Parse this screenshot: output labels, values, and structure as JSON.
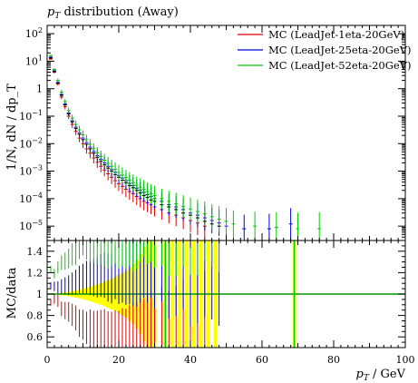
{
  "chart_data": {
    "type": "scatter",
    "title": "p_T distribution (Away)",
    "title_parts": {
      "symbol": "p",
      "sub": "T",
      "text": " distribution (Away)"
    },
    "xlabel": "p_T / GeV",
    "xlabel_parts": {
      "symbol": "p",
      "sub": "T",
      "text": " / GeV"
    },
    "xlim": [
      0,
      100
    ],
    "xticks": [
      0,
      20,
      40,
      60,
      80,
      100
    ],
    "xtick_labels": [
      "0",
      "20",
      "40",
      "60",
      "80",
      "100"
    ],
    "legend_position": "top-right",
    "main_panel": {
      "ylabel": "1/N, dN / dp_T",
      "yscale": "log",
      "ylim": [
        3e-06,
        200
      ],
      "yticks": [
        1e-05,
        0.0001,
        0.001,
        0.01,
        0.1,
        1,
        10,
        100
      ],
      "ytick_labels": [
        {
          "base": "10",
          "exp": "−5"
        },
        {
          "base": "10",
          "exp": "−4"
        },
        {
          "base": "10",
          "exp": "−3"
        },
        {
          "base": "10",
          "exp": "−2"
        },
        {
          "base": "10",
          "exp": "−1"
        },
        {
          "base": "1",
          "exp": ""
        },
        {
          "base": "10",
          "exp": "1"
        },
        {
          "base": "10",
          "exp": "2"
        }
      ]
    },
    "ratio_panel": {
      "ylabel": "MC/data",
      "ylim": [
        0.5,
        1.5
      ],
      "yticks": [
        0.6,
        0.8,
        1,
        1.2,
        1.4
      ],
      "ytick_labels": [
        "0.6",
        "0.8",
        "1",
        "1.2",
        "1.4"
      ],
      "reference_line": 1
    },
    "series": [
      {
        "name": "MC (LeadJet-1eta-20GeV)",
        "color": "#dd0000",
        "points": [
          [
            1,
            12
          ],
          [
            2,
            4
          ],
          [
            3,
            1.5
          ],
          [
            4,
            0.5
          ],
          [
            5,
            0.22
          ],
          [
            6,
            0.1
          ],
          [
            7,
            0.05
          ],
          [
            8,
            0.028
          ],
          [
            9,
            0.016
          ],
          [
            10,
            0.01
          ],
          [
            11,
            0.0065
          ],
          [
            12,
            0.0045
          ],
          [
            13,
            0.003
          ],
          [
            14,
            0.0021
          ],
          [
            15,
            0.0015
          ],
          [
            16,
            0.0011
          ],
          [
            17,
            0.0008
          ],
          [
            18,
            0.0006
          ],
          [
            19,
            0.00045
          ],
          [
            20,
            0.00035
          ],
          [
            21,
            0.00028
          ],
          [
            22,
            0.00022
          ],
          [
            23,
            0.00018
          ],
          [
            24,
            0.00015
          ],
          [
            25,
            0.00012
          ],
          [
            26,
            0.0001
          ],
          [
            27,
            8e-05
          ],
          [
            28,
            7e-05
          ],
          [
            29,
            6e-05
          ],
          [
            30,
            5e-05
          ],
          [
            32,
            4e-05
          ],
          [
            34,
            3e-05
          ],
          [
            36,
            2.5e-05
          ],
          [
            38,
            2e-05
          ],
          [
            40,
            1.6e-05
          ],
          [
            42,
            1.3e-05
          ],
          [
            44,
            1e-05
          ]
        ]
      },
      {
        "name": "MC (LeadJet-25eta-20GeV)",
        "color": "#0000dd",
        "points": [
          [
            1,
            14
          ],
          [
            2,
            4.5
          ],
          [
            3,
            1.7
          ],
          [
            4,
            0.62
          ],
          [
            5,
            0.28
          ],
          [
            6,
            0.13
          ],
          [
            7,
            0.068
          ],
          [
            8,
            0.04
          ],
          [
            9,
            0.025
          ],
          [
            10,
            0.016
          ],
          [
            11,
            0.011
          ],
          [
            12,
            0.0075
          ],
          [
            13,
            0.0052
          ],
          [
            14,
            0.0037
          ],
          [
            15,
            0.0027
          ],
          [
            16,
            0.002
          ],
          [
            17,
            0.0015
          ],
          [
            18,
            0.00115
          ],
          [
            19,
            0.0009
          ],
          [
            20,
            0.0007
          ],
          [
            21,
            0.00056
          ],
          [
            22,
            0.00045
          ],
          [
            23,
            0.00036
          ],
          [
            24,
            0.0003
          ],
          [
            25,
            0.00024
          ],
          [
            26,
            0.0002
          ],
          [
            27,
            0.00017
          ],
          [
            28,
            0.00014
          ],
          [
            29,
            0.00012
          ],
          [
            30,
            0.0001
          ],
          [
            32,
            8e-05
          ],
          [
            34,
            6e-05
          ],
          [
            36,
            5e-05
          ],
          [
            38,
            4e-05
          ],
          [
            40,
            3e-05
          ],
          [
            42,
            2.5e-05
          ],
          [
            44,
            2e-05
          ],
          [
            46,
            1.6e-05
          ],
          [
            48,
            1.3e-05
          ],
          [
            50,
            1e-05
          ],
          [
            55,
            8e-06
          ],
          [
            62,
            8e-06
          ],
          [
            68,
            1.2e-05
          ]
        ]
      },
      {
        "name": "MC (LeadJet-52eta-20GeV)",
        "color": "#00cc00",
        "points": [
          [
            1,
            16
          ],
          [
            2,
            5
          ],
          [
            3,
            2
          ],
          [
            4,
            0.75
          ],
          [
            5,
            0.34
          ],
          [
            6,
            0.16
          ],
          [
            7,
            0.085
          ],
          [
            8,
            0.05
          ],
          [
            9,
            0.032
          ],
          [
            10,
            0.021
          ],
          [
            11,
            0.014
          ],
          [
            12,
            0.0095
          ],
          [
            13,
            0.0066
          ],
          [
            14,
            0.0047
          ],
          [
            15,
            0.0034
          ],
          [
            16,
            0.0025
          ],
          [
            17,
            0.0019
          ],
          [
            18,
            0.0015
          ],
          [
            19,
            0.00115
          ],
          [
            20,
            0.0009
          ],
          [
            21,
            0.00072
          ],
          [
            22,
            0.00058
          ],
          [
            23,
            0.00047
          ],
          [
            24,
            0.00038
          ],
          [
            25,
            0.00031
          ],
          [
            26,
            0.00026
          ],
          [
            27,
            0.00022
          ],
          [
            28,
            0.00018
          ],
          [
            29,
            0.00015
          ],
          [
            30,
            0.00013
          ],
          [
            32,
            0.0001
          ],
          [
            34,
            8e-05
          ],
          [
            36,
            6.5e-05
          ],
          [
            38,
            5.2e-05
          ],
          [
            40,
            4.2e-05
          ],
          [
            42,
            3.4e-05
          ],
          [
            44,
            2.8e-05
          ],
          [
            46,
            2.2e-05
          ],
          [
            48,
            1.8e-05
          ],
          [
            50,
            1.5e-05
          ],
          [
            52,
            1.2e-05
          ],
          [
            58,
            1e-05
          ],
          [
            64,
            9e-06
          ],
          [
            70,
            8e-06
          ],
          [
            76,
            8e-06
          ]
        ]
      }
    ],
    "data_points": [
      [
        1,
        13
      ],
      [
        2,
        4.2
      ],
      [
        3,
        1.6
      ],
      [
        4,
        0.58
      ],
      [
        5,
        0.26
      ],
      [
        6,
        0.12
      ],
      [
        7,
        0.062
      ],
      [
        8,
        0.036
      ],
      [
        9,
        0.022
      ],
      [
        10,
        0.014
      ],
      [
        11,
        0.0095
      ],
      [
        12,
        0.0065
      ],
      [
        13,
        0.0045
      ],
      [
        14,
        0.0032
      ],
      [
        15,
        0.0023
      ],
      [
        16,
        0.0017
      ],
      [
        17,
        0.0013
      ],
      [
        18,
        0.001
      ],
      [
        19,
        0.00075
      ],
      [
        20,
        0.0006
      ],
      [
        21,
        0.00047
      ],
      [
        22,
        0.00038
      ],
      [
        23,
        0.0003
      ],
      [
        24,
        0.00025
      ],
      [
        25,
        0.0002
      ],
      [
        26,
        0.00016
      ],
      [
        27,
        0.00013
      ],
      [
        28,
        0.00011
      ],
      [
        29,
        9e-05
      ],
      [
        30,
        8e-05
      ],
      [
        32,
        6e-05
      ],
      [
        34,
        5e-05
      ],
      [
        36,
        4e-05
      ],
      [
        38,
        3e-05
      ],
      [
        40,
        2.5e-05
      ],
      [
        42,
        2e-05
      ],
      [
        44,
        1.5e-05
      ],
      [
        46,
        1.2e-05
      ],
      [
        48,
        1e-05
      ]
    ],
    "ratio_band_halfwidth": [
      [
        1,
        0.002
      ],
      [
        2,
        0.004
      ],
      [
        3,
        0.006
      ],
      [
        4,
        0.01
      ],
      [
        5,
        0.014
      ],
      [
        6,
        0.02
      ],
      [
        7,
        0.026
      ],
      [
        8,
        0.033
      ],
      [
        9,
        0.04
      ],
      [
        10,
        0.048
      ],
      [
        11,
        0.057
      ],
      [
        12,
        0.067
      ],
      [
        13,
        0.078
      ],
      [
        14,
        0.09
      ],
      [
        15,
        0.1
      ],
      [
        16,
        0.115
      ],
      [
        17,
        0.13
      ],
      [
        18,
        0.145
      ],
      [
        19,
        0.16
      ],
      [
        20,
        0.18
      ],
      [
        21,
        0.2
      ],
      [
        22,
        0.22
      ],
      [
        23,
        0.25
      ],
      [
        24,
        0.28
      ],
      [
        25,
        0.32
      ],
      [
        26,
        0.37
      ],
      [
        27,
        0.44
      ],
      [
        28,
        0.5
      ],
      [
        29,
        0.5
      ],
      [
        30,
        0.5
      ],
      [
        33,
        0.5
      ],
      [
        35,
        0.5
      ],
      [
        37,
        0.5
      ],
      [
        39,
        0.5
      ],
      [
        41,
        0.5
      ],
      [
        43,
        0.5
      ],
      [
        45,
        0.5
      ],
      [
        47,
        0.5
      ],
      [
        69,
        0.5
      ]
    ]
  }
}
